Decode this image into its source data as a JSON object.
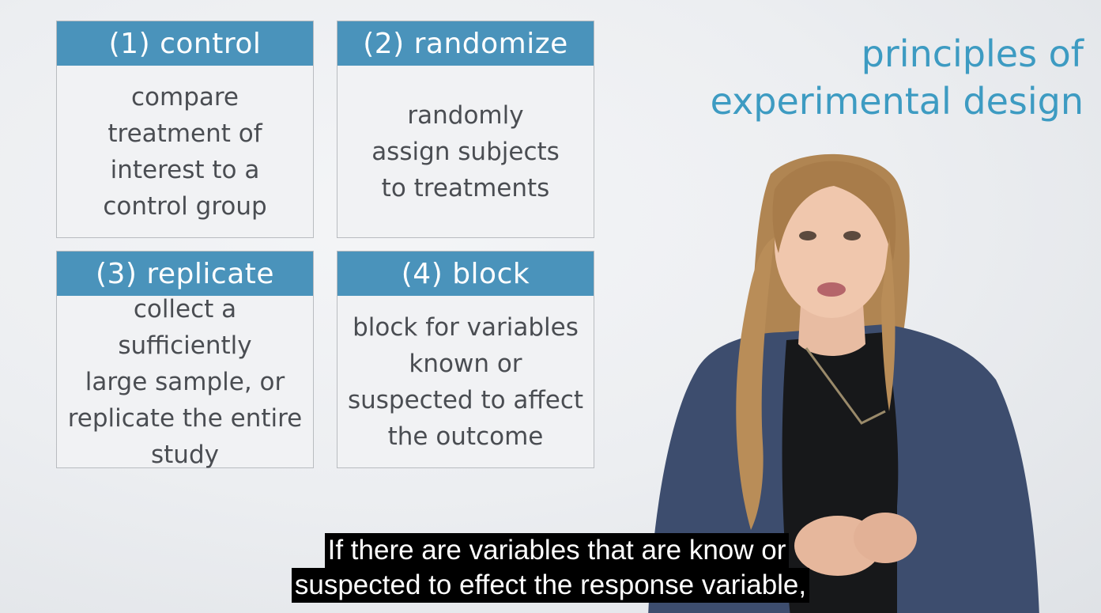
{
  "slide": {
    "title_line1": "principles of",
    "title_line2": "experimental design",
    "accent_color": "#4a93bb",
    "cards": [
      {
        "header": "(1) control",
        "body": "compare\ntreatment of\ninterest to a\ncontrol group"
      },
      {
        "header": "(2) randomize",
        "body": "randomly\nassign subjects\nto treatments"
      },
      {
        "header": "(3) replicate",
        "body": "collect a sufficiently\nlarge sample, or\nreplicate the entire\nstudy"
      },
      {
        "header": "(4) block",
        "body": "block for variables\nknown or\nsuspected to affect\nthe outcome"
      }
    ]
  },
  "subtitles": {
    "line1": "If there are variables that are know or",
    "line2": "suspected to effect the response variable,"
  }
}
